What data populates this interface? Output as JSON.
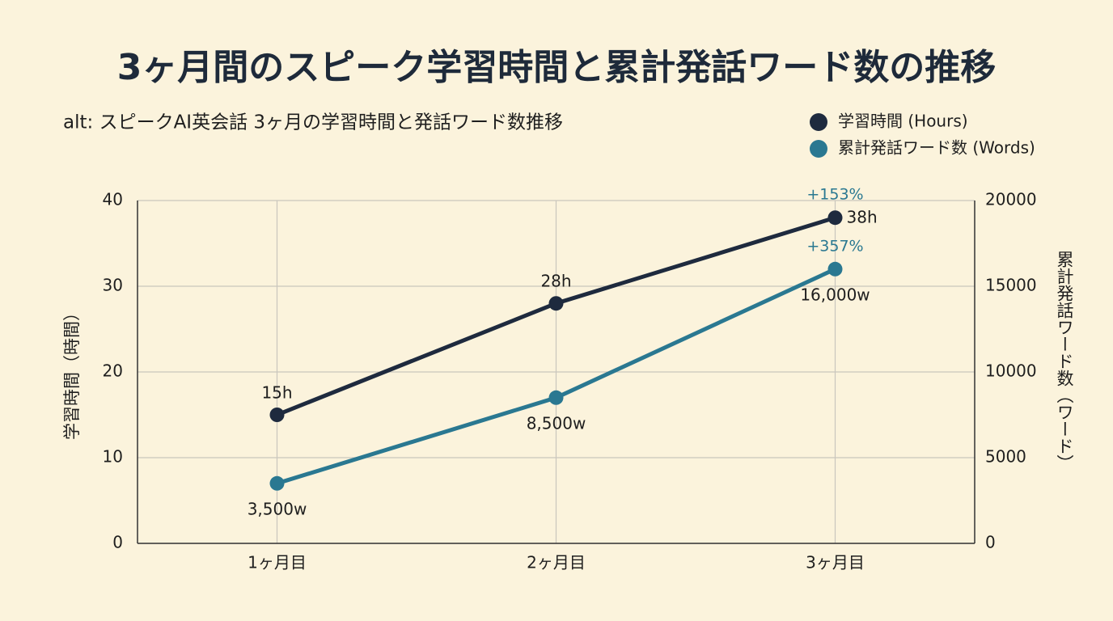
{
  "chart_data": {
    "type": "line",
    "title": "3ヶ月間のスピーク学習時間と累計発話ワード数の推移",
    "subtitle": "alt: スピークAI英会話 3ヶ月の学習時間と発話ワード数推移",
    "y_label": "学習時間（時間）",
    "y2_label": "累計発話ワード数（ワード）",
    "categories": [
      "1ヶ月目",
      "2ヶ月目",
      "3ヶ月目"
    ],
    "series": [
      {
        "name": "学習時間 (Hours)",
        "color": "#1e2a3e",
        "values": [
          15,
          28,
          38
        ],
        "value_labels": [
          "15h",
          "28h",
          "38h"
        ]
      },
      {
        "name": "累計発話ワード数 (Words)",
        "color": "#2a7891",
        "axis": "y2",
        "values": [
          3500,
          8500,
          16000
        ],
        "value_labels": [
          "3,500w",
          "8,500w",
          "16,000w"
        ]
      }
    ],
    "annotations": [
      "+153%",
      "+357%"
    ],
    "ylim": [
      0,
      40
    ],
    "yticks": [
      0,
      10,
      20,
      30,
      40
    ],
    "y2lim": [
      0,
      20000
    ],
    "y2ticks": [
      0,
      5000,
      10000,
      15000,
      20000
    ],
    "grid": true,
    "legend": "upper right"
  }
}
